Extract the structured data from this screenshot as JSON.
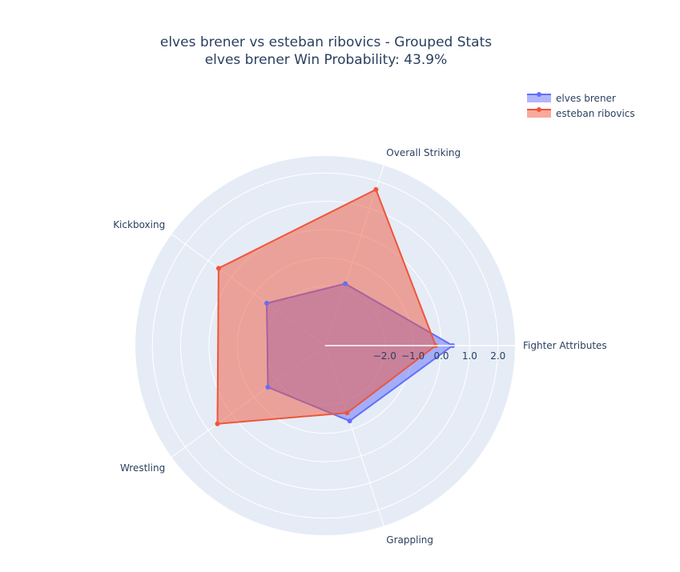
{
  "chart_data": {
    "type": "radar",
    "title": "elves brener vs esteban ribovics - Grouped Stats",
    "subtitle": "elves brener Win Probability: 43.9%",
    "categories": [
      "Fighter Attributes",
      "Overall Striking",
      "Kickboxing",
      "Wrestling",
      "Grappling"
    ],
    "radial_range": [
      -4.1,
      2.6
    ],
    "radial_ticks": [
      "−2.0",
      "−1.0",
      "0.0",
      "1.0",
      "2.0"
    ],
    "radial_tick_values": [
      -2,
      -1,
      0,
      1,
      2
    ],
    "grid": true,
    "legend_position": "top-right",
    "series": [
      {
        "name": "elves brener",
        "color": "#636efa",
        "values": [
          0.4,
          -1.8,
          -1.55,
          -1.6,
          -1.3
        ]
      },
      {
        "name": "esteban ribovics",
        "color": "#ef553b",
        "values": [
          -0.2,
          1.7,
          0.55,
          0.6,
          -1.6
        ]
      }
    ]
  }
}
